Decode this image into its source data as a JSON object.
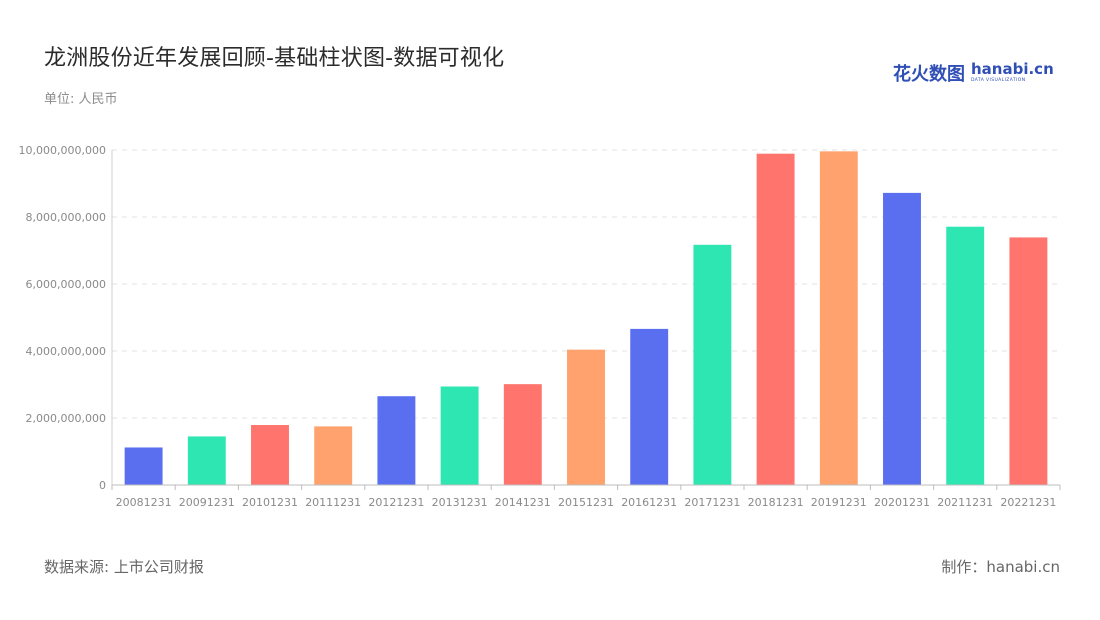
{
  "page": {
    "title": "龙洲股份近年发展回顾-基础柱状图-数据可视化",
    "unit": "单位: 人民币",
    "source": "数据来源: 上市公司财报",
    "credit": "制作：hanabi.cn",
    "logo": {
      "cn": "花火数图",
      "en": "hanabi.cn",
      "sub": "DATA VISUALIZATION",
      "color": "#2f4fb6"
    }
  },
  "chart_data": {
    "type": "bar",
    "categories": [
      "20081231",
      "20091231",
      "20101231",
      "20111231",
      "20121231",
      "20131231",
      "20141231",
      "20151231",
      "20161231",
      "20171231",
      "20181231",
      "20191231",
      "20201231",
      "20211231",
      "20221231"
    ],
    "values": [
      1120000000,
      1450000000,
      1790000000,
      1750000000,
      2650000000,
      2940000000,
      3010000000,
      4040000000,
      4660000000,
      7170000000,
      9890000000,
      9960000000,
      8720000000,
      7710000000,
      7390000000
    ],
    "ylim": [
      0,
      10000000000
    ],
    "yticks": [
      0,
      2000000000,
      4000000000,
      6000000000,
      8000000000,
      10000000000
    ],
    "ytick_labels": [
      "0",
      "2,000,000,000",
      "4,000,000,000",
      "6,000,000,000",
      "8,000,000,000",
      "10,000,000,000"
    ],
    "grid": true,
    "palette": [
      "#5a6ff0",
      "#2ee6b1",
      "#ff746d",
      "#ffa26d"
    ],
    "xlabel": "",
    "ylabel": ""
  }
}
